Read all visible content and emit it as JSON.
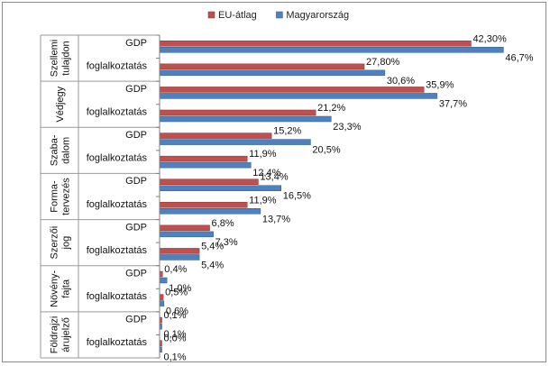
{
  "colors": {
    "eu": "#c0504d",
    "hu": "#4f81bd",
    "eu_stroke": "#8c2f2c",
    "hu_stroke": "#2c5a8c"
  },
  "chart_data": {
    "type": "bar",
    "orientation": "horizontal",
    "legend_position": "top-center",
    "legend": [
      {
        "name": "EU-átlag",
        "key": "eu"
      },
      {
        "name": "Magyarország",
        "key": "hu"
      }
    ],
    "xlim": [
      0,
      48
    ],
    "grid": false,
    "groups": [
      {
        "label_lines": [
          "Szellemi",
          "tulajdon"
        ],
        "items": [
          {
            "category": "GDP",
            "eu": 42.3,
            "eu_label": "42,30%",
            "hu": 46.7,
            "hu_label": "46,7%"
          },
          {
            "category": "foglalkoztatás",
            "eu": 27.8,
            "eu_label": "27,80%",
            "hu": 30.6,
            "hu_label": "30,6%"
          }
        ]
      },
      {
        "label_lines": [
          "Védjegy"
        ],
        "items": [
          {
            "category": "GDP",
            "eu": 35.9,
            "eu_label": "35,9%",
            "hu": 37.7,
            "hu_label": "37,7%"
          },
          {
            "category": "foglalkoztatás",
            "eu": 21.2,
            "eu_label": "21,2%",
            "hu": 23.3,
            "hu_label": "23,3%"
          }
        ]
      },
      {
        "label_lines": [
          "Szaba-",
          "dalom"
        ],
        "items": [
          {
            "category": "GDP",
            "eu": 15.2,
            "eu_label": "15,2%",
            "hu": 20.5,
            "hu_label": "20,5%"
          },
          {
            "category": "foglalkoztatás",
            "eu": 11.9,
            "eu_label": "11,9%",
            "hu": 12.4,
            "hu_label": "12,4%"
          }
        ]
      },
      {
        "label_lines": [
          "Forma-",
          "tervezés"
        ],
        "items": [
          {
            "category": "GDP",
            "eu": 13.4,
            "eu_label": "13,4%",
            "hu": 16.5,
            "hu_label": "16,5%"
          },
          {
            "category": "foglalkoztatás",
            "eu": 11.9,
            "eu_label": "11,9%",
            "hu": 13.7,
            "hu_label": "13,7%"
          }
        ]
      },
      {
        "label_lines": [
          "Szerzői",
          "jog"
        ],
        "items": [
          {
            "category": "GDP",
            "eu": 6.8,
            "eu_label": "6,8%",
            "hu": 7.3,
            "hu_label": "7,3%"
          },
          {
            "category": "foglalkoztatás",
            "eu": 5.4,
            "eu_label": "5,4%",
            "hu": 5.4,
            "hu_label": "5,4%"
          }
        ]
      },
      {
        "label_lines": [
          "Növény-",
          "fajta"
        ],
        "items": [
          {
            "category": "GDP",
            "eu": 0.4,
            "eu_label": "0,4%",
            "hu": 1.0,
            "hu_label": "1,0%"
          },
          {
            "category": "foglalkoztatás",
            "eu": 0.5,
            "eu_label": "0,5%",
            "hu": 0.6,
            "hu_label": "0,6%"
          }
        ]
      },
      {
        "label_lines": [
          "Földrajzi",
          "árujelző"
        ],
        "items": [
          {
            "category": "GDP",
            "eu": 0.1,
            "eu_label": "0,1%",
            "hu": 0.1,
            "hu_label": "0,1%"
          },
          {
            "category": "foglalkoztatás",
            "eu": 0.0,
            "eu_label": "0,0%",
            "hu": 0.1,
            "hu_label": "0,1%"
          }
        ]
      }
    ]
  }
}
